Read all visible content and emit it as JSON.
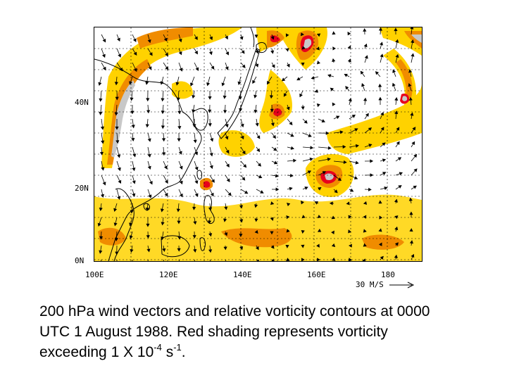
{
  "axes": {
    "lat_labels": [
      "40N",
      "20N",
      "0N"
    ],
    "lon_labels": [
      "100E",
      "120E",
      "140E",
      "160E",
      "180"
    ]
  },
  "scale": {
    "label": "30 M/S"
  },
  "caption": {
    "line1": "200 hPa wind vectors and relative vorticity contours at 0000",
    "line2": "UTC 1 August 1988.  Red shading represents vorticity",
    "line3_pre": "exceeding 1 X 10",
    "exp1": "-4",
    "mid": " s",
    "exp2": "-1",
    "end": "."
  },
  "colors": {
    "shade_yellow": "#ffd200",
    "shade_orange": "#f08c00",
    "shade_red": "#e8001c",
    "shade_gray": "#c8c8c8",
    "coast": "#000000",
    "grid": "#000000",
    "vector": "#000000"
  },
  "map_content": {
    "field": "200 hPa relative vorticity",
    "vectors": "200 hPa wind"
  }
}
